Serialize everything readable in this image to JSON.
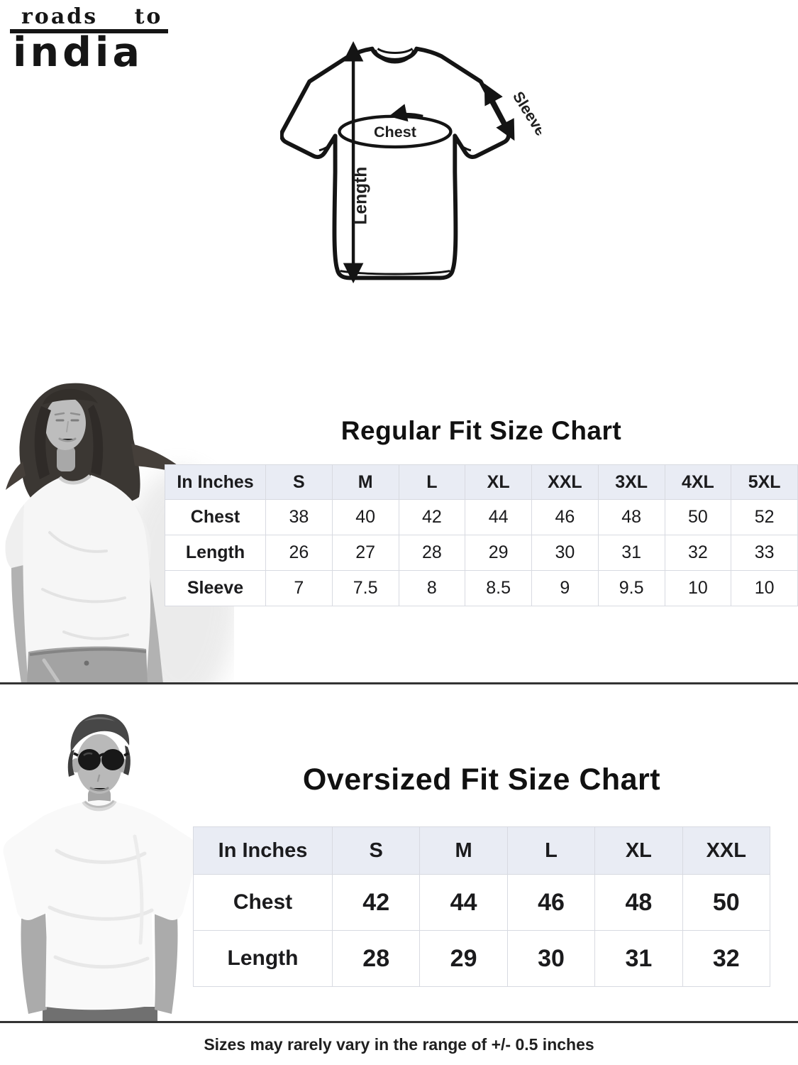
{
  "brand": {
    "line1": "roads to",
    "line2": "india"
  },
  "diagram": {
    "chest_label": "Chest",
    "length_label": "Length",
    "sleeve_label": "Sleeve"
  },
  "regular_chart": {
    "title": "Regular Fit Size Chart",
    "unit_header": "In Inches",
    "columns": [
      "S",
      "M",
      "L",
      "XL",
      "XXL",
      "3XL",
      "4XL",
      "5XL"
    ],
    "rows": [
      {
        "label": "Chest",
        "values": [
          "38",
          "40",
          "42",
          "44",
          "46",
          "48",
          "50",
          "52"
        ]
      },
      {
        "label": "Length",
        "values": [
          "26",
          "27",
          "28",
          "29",
          "30",
          "31",
          "32",
          "33"
        ]
      },
      {
        "label": "Sleeve",
        "values": [
          "7",
          "7.5",
          "8",
          "8.5",
          "9",
          "9.5",
          "10",
          "10"
        ]
      }
    ]
  },
  "oversized_chart": {
    "title": "Oversized Fit Size Chart",
    "unit_header": "In Inches",
    "columns": [
      "S",
      "M",
      "L",
      "XL",
      "XXL"
    ],
    "rows": [
      {
        "label": "Chest",
        "values": [
          "42",
          "44",
          "46",
          "48",
          "50"
        ]
      },
      {
        "label": "Length",
        "values": [
          "28",
          "29",
          "30",
          "31",
          "32"
        ]
      }
    ]
  },
  "footer": {
    "note": "Sizes may rarely vary in the range of +/- 0.5 inches"
  },
  "colors": {
    "header_bg": "#e9ecf4",
    "grid": "#d8dae1",
    "text": "#1b1b1d",
    "divider": "#333333",
    "title": "#111111"
  },
  "chart_data": [
    {
      "type": "table",
      "title": "Regular Fit Size Chart",
      "unit": "inches",
      "columns": [
        "S",
        "M",
        "L",
        "XL",
        "XXL",
        "3XL",
        "4XL",
        "5XL"
      ],
      "rows": {
        "Chest": [
          38,
          40,
          42,
          44,
          46,
          48,
          50,
          52
        ],
        "Length": [
          26,
          27,
          28,
          29,
          30,
          31,
          32,
          33
        ],
        "Sleeve": [
          7,
          7.5,
          8,
          8.5,
          9,
          9.5,
          10,
          10
        ]
      }
    },
    {
      "type": "table",
      "title": "Oversized Fit Size Chart",
      "unit": "inches",
      "columns": [
        "S",
        "M",
        "L",
        "XL",
        "XXL"
      ],
      "rows": {
        "Chest": [
          42,
          44,
          46,
          48,
          50
        ],
        "Length": [
          28,
          29,
          30,
          31,
          32
        ]
      }
    }
  ]
}
